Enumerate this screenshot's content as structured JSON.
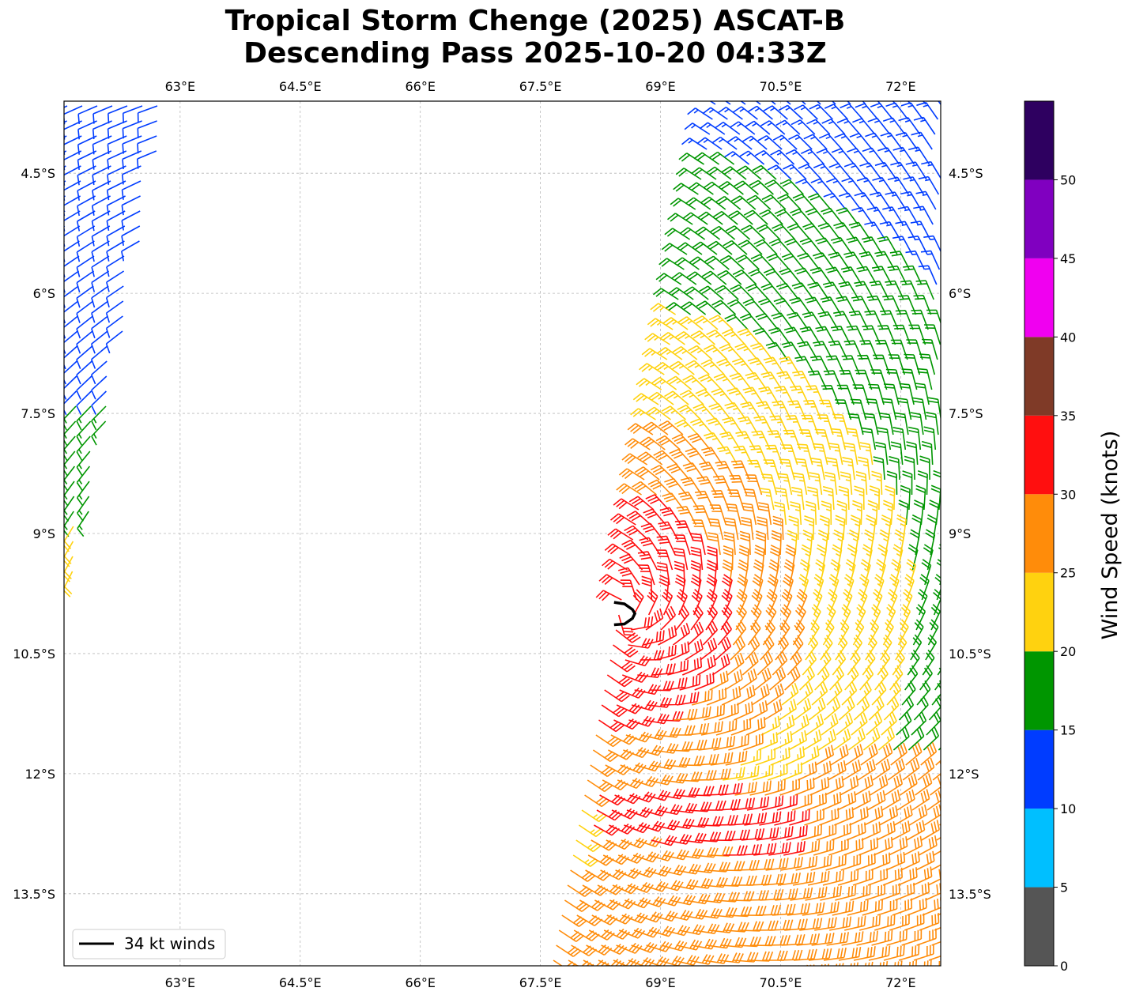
{
  "title": {
    "line1": "Tropical Storm Chenge (2025) ASCAT-B",
    "line2": "Descending Pass 2025-10-20 04:33Z"
  },
  "legend": {
    "label": "34 kt winds"
  },
  "colorbar": {
    "label": "Wind Speed (knots)",
    "ticks": [
      "0",
      "5",
      "10",
      "15",
      "20",
      "25",
      "30",
      "35",
      "40",
      "45",
      "50"
    ],
    "bins": [
      {
        "min": 0,
        "max": 5,
        "color": "#555555"
      },
      {
        "min": 5,
        "max": 10,
        "color": "#00bfff"
      },
      {
        "min": 10,
        "max": 15,
        "color": "#003cff"
      },
      {
        "min": 15,
        "max": 20,
        "color": "#009600"
      },
      {
        "min": 20,
        "max": 25,
        "color": "#ffd20f"
      },
      {
        "min": 25,
        "max": 30,
        "color": "#ff8c0a"
      },
      {
        "min": 30,
        "max": 35,
        "color": "#ff0f0f"
      },
      {
        "min": 35,
        "max": 40,
        "color": "#7f3a27"
      },
      {
        "min": 40,
        "max": 45,
        "color": "#f000f0"
      },
      {
        "min": 45,
        "max": 50,
        "color": "#8000c0"
      },
      {
        "min": 50,
        "max": 55,
        "color": "#2e0060"
      }
    ]
  },
  "chart_data": {
    "type": "scatter",
    "subtype": "wind barbs on lat/lon map",
    "title": "Tropical Storm Chenge (2025) ASCAT-B Descending Pass 2025-10-20 04:33Z",
    "xlabel": "",
    "ylabel": "",
    "x_ticks": [
      "63°E",
      "64.5°E",
      "66°E",
      "67.5°E",
      "69°E",
      "70.5°E",
      "72°E"
    ],
    "x_tick_values": [
      63,
      64.5,
      66,
      67.5,
      69,
      70.5,
      72
    ],
    "y_ticks": [
      "4.5°S",
      "6°S",
      "7.5°S",
      "9°S",
      "10.5°S",
      "12°S",
      "13.5°S"
    ],
    "y_tick_values": [
      -4.5,
      -6,
      -7.5,
      -9,
      -10.5,
      -12,
      -13.5
    ],
    "xlim": [
      61.55,
      72.5
    ],
    "ylim": [
      -14.4,
      -3.6
    ],
    "grid": true,
    "legend_position": "bottom-left",
    "storm_center": {
      "lon": 68.5,
      "lat": -10.0
    },
    "series": [
      {
        "name": "34 kt winds",
        "lon": [
          68.42,
          68.55,
          68.65,
          68.68,
          68.65,
          68.55,
          68.42
        ],
        "lat": [
          -9.86,
          -9.88,
          -9.95,
          -10.0,
          -10.06,
          -10.13,
          -10.14
        ]
      }
    ],
    "swaths": [
      {
        "lon_min": 61.55,
        "lon_max": 62.85,
        "lat_min": -9.55,
        "lat_max": -3.6,
        "speed_range_kt": [
          10,
          24
        ]
      },
      {
        "lon_min": 67.45,
        "lon_max": 72.5,
        "lat_min": -14.4,
        "lat_max": -3.6,
        "speed_range_kt": [
          10,
          34
        ]
      }
    ]
  }
}
